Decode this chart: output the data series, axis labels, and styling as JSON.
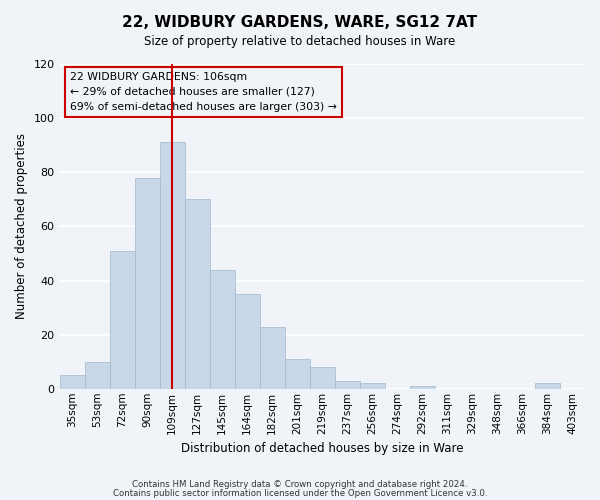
{
  "title": "22, WIDBURY GARDENS, WARE, SG12 7AT",
  "subtitle": "Size of property relative to detached houses in Ware",
  "xlabel": "Distribution of detached houses by size in Ware",
  "ylabel": "Number of detached properties",
  "bins": [
    "35sqm",
    "53sqm",
    "72sqm",
    "90sqm",
    "109sqm",
    "127sqm",
    "145sqm",
    "164sqm",
    "182sqm",
    "201sqm",
    "219sqm",
    "237sqm",
    "256sqm",
    "274sqm",
    "292sqm",
    "311sqm",
    "329sqm",
    "348sqm",
    "366sqm",
    "384sqm",
    "403sqm"
  ],
  "values": [
    5,
    10,
    51,
    78,
    91,
    70,
    44,
    35,
    23,
    11,
    8,
    3,
    2,
    0,
    1,
    0,
    0,
    0,
    0,
    2,
    0
  ],
  "bar_color": "#c8d8e8",
  "bar_edge_color": "#a0b8cc",
  "vline_x_index": 4,
  "vline_color": "#cc0000",
  "ylim": [
    0,
    120
  ],
  "yticks": [
    0,
    20,
    40,
    60,
    80,
    100,
    120
  ],
  "annotation_box_text": "22 WIDBURY GARDENS: 106sqm\n← 29% of detached houses are smaller (127)\n69% of semi-detached houses are larger (303) →",
  "box_edge_color": "#cc0000",
  "footer_line1": "Contains HM Land Registry data © Crown copyright and database right 2024.",
  "footer_line2": "Contains public sector information licensed under the Open Government Licence v3.0.",
  "background_color": "#f0f4f8",
  "grid_color": "#ffffff"
}
